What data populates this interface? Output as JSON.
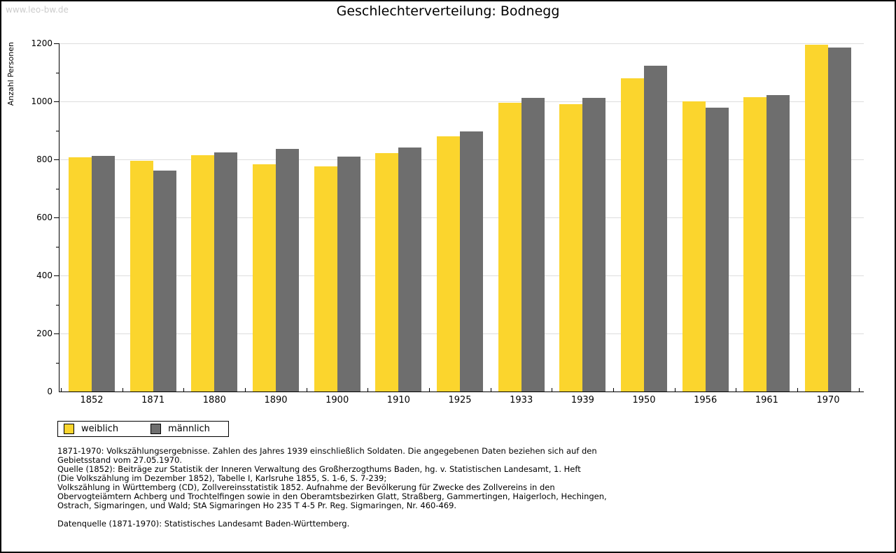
{
  "watermark": "www.leo-bw.de",
  "title": "Geschlechterverteilung: Bodnegg",
  "chart_data": {
    "type": "bar",
    "title": "Geschlechterverteilung: Bodnegg",
    "xlabel": "",
    "ylabel": "Anzahl Personen",
    "categories": [
      "1852",
      "1871",
      "1880",
      "1890",
      "1900",
      "1910",
      "1925",
      "1933",
      "1939",
      "1950",
      "1956",
      "1961",
      "1970"
    ],
    "series": [
      {
        "name": "weiblich",
        "color": "#FBD52D",
        "values": [
          807,
          795,
          815,
          783,
          776,
          822,
          880,
          996,
          990,
          1080,
          1000,
          1015,
          1196
        ]
      },
      {
        "name": "männlich",
        "color": "#6E6E6E",
        "values": [
          812,
          762,
          825,
          837,
          810,
          840,
          897,
          1011,
          1011,
          1122,
          978,
          1021,
          1186
        ]
      }
    ],
    "ylim": [
      0,
      1200
    ],
    "ytick_major_interval": 200,
    "ytick_minor_interval": 100,
    "grid": "horizontal-major-only",
    "gridline_color": "#dddddd",
    "legend_position": "bottom-left"
  },
  "footnotes": {
    "lines": [
      "1871-1970: Volkszählungsergebnisse. Zahlen des Jahres 1939 einschließlich Soldaten. Die angegebenen Daten beziehen sich auf den",
      "Gebietsstand vom 27.05.1970.",
      "Quelle (1852): Beiträge zur Statistik der Inneren Verwaltung des Großherzogthums Baden, hg. v. Statistischen Landesamt, 1. Heft",
      "(Die Volkszählung im Dezember 1852), Tabelle I, Karlsruhe 1855, S. 1-6, S. 7-239;",
      "Volkszählung in Württemberg (CD), Zollvereinsstatistik 1852. Aufnahme der Bevölkerung für Zwecke des Zollvereins in den",
      "Obervogteiämtern Achberg und Trochtelfingen sowie in den Oberamtsbezirken Glatt, Straßberg, Gammertingen, Haigerloch, Hechingen,",
      "Ostrach, Sigmaringen, und Wald; StA Sigmaringen Ho 235 T 4-5 Pr. Reg. Sigmaringen, Nr. 460-469."
    ],
    "datasource": "Datenquelle (1871-1970): Statistisches Landesamt Baden-Württemberg."
  },
  "colors": {
    "weiblich": "#FBD52D",
    "männlich": "#6E6E6E",
    "watermark": "#cccccc",
    "gridline": "#dddddd",
    "border": "#000000"
  }
}
